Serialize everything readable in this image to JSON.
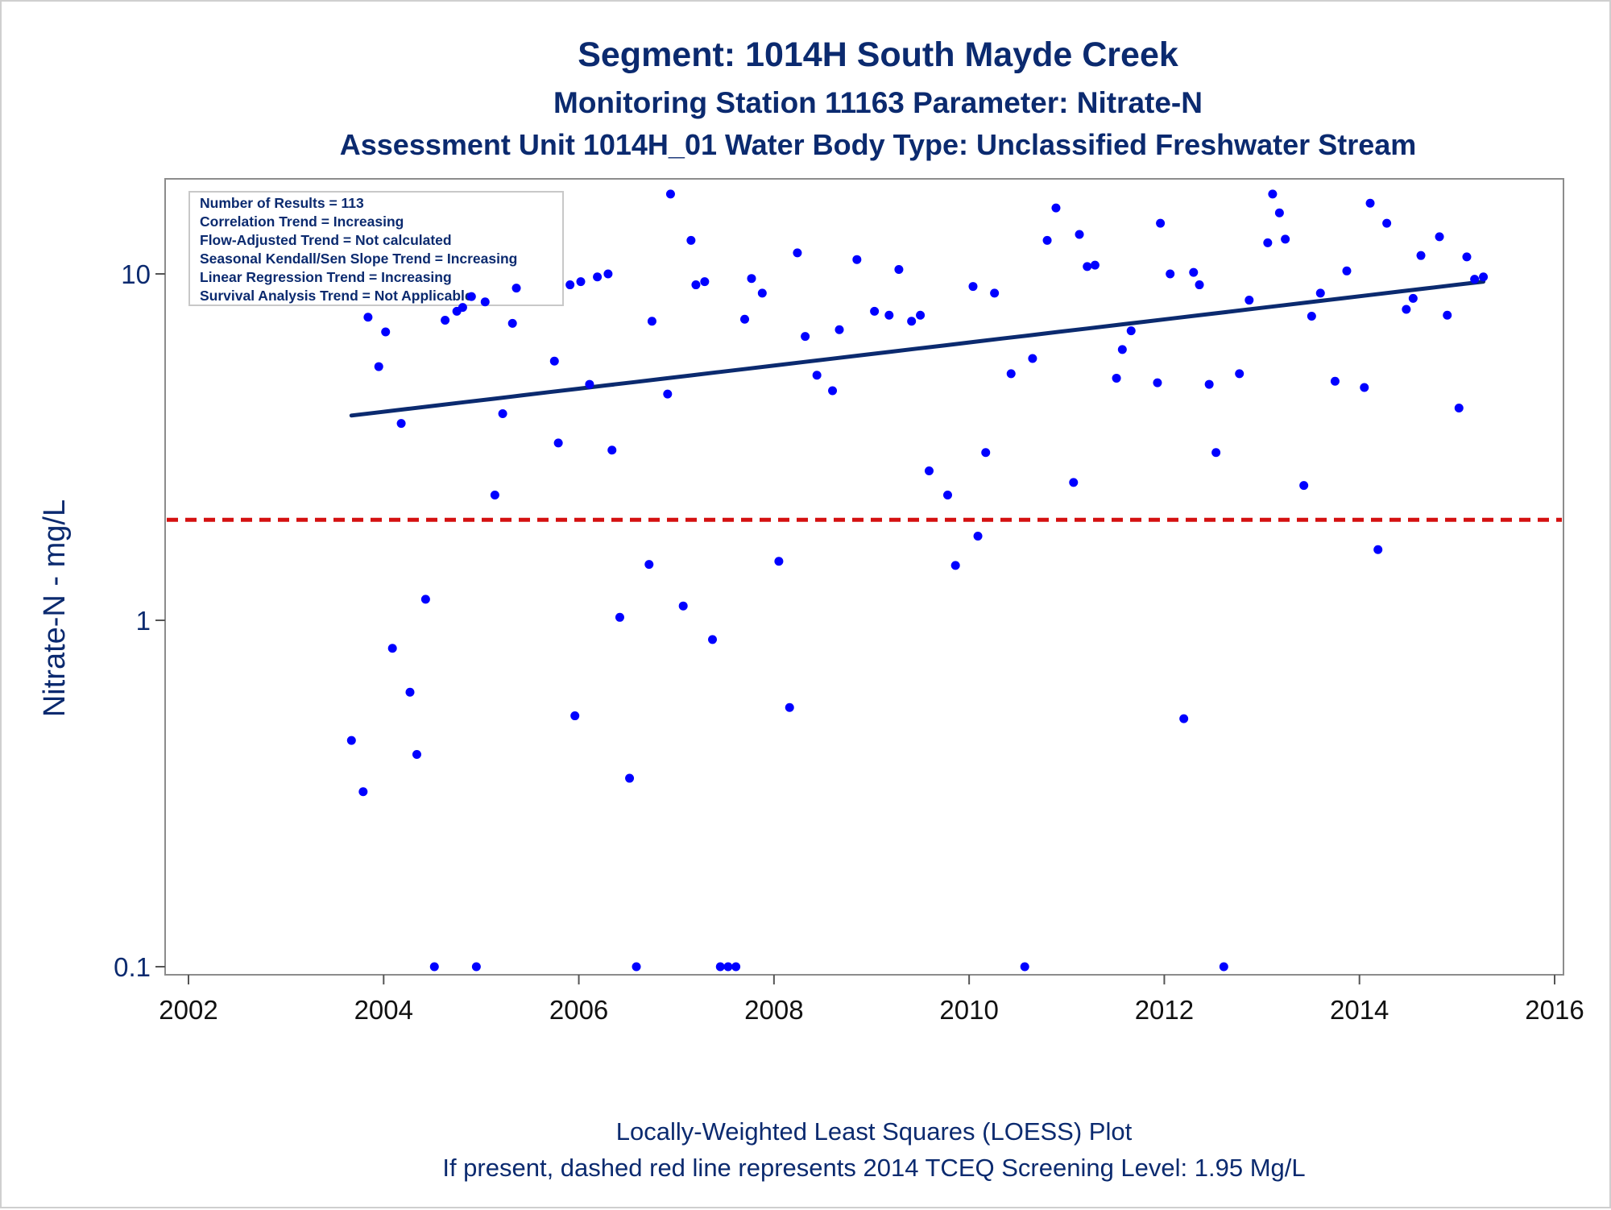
{
  "title": "Segment: 1014H  South Mayde Creek",
  "subtitle": "Monitoring Station 11163 Parameter: Nitrate-N",
  "subtitle2": "Assessment Unit 1014H_01   Water Body Type: Unclassified Freshwater Stream",
  "footnote1": "Locally-Weighted Least Squares (LOESS) Plot",
  "footnote2": "If present, dashed red line represents 2014 TCEQ Screening Level: 1.95 Mg/L",
  "stats_box": [
    "Number of Results = 113",
    "Correlation Trend = Increasing",
    "Flow-Adjusted Trend = Not calculated",
    "Seasonal Kendall/Sen Slope Trend = Increasing",
    "Linear Regression Trend = Increasing",
    "Survival Analysis Trend = Not Applicable"
  ],
  "chart_data": {
    "type": "scatter",
    "title": "Segment: 1014H  South Mayde Creek",
    "xlabel": "",
    "ylabel": "Nitrate-N - mg/L",
    "xlim": [
      2002,
      2016
    ],
    "ylim": [
      0.1,
      17
    ],
    "yscale": "log",
    "grid": false,
    "xticks": [
      "2002",
      "2004",
      "2006",
      "2008",
      "2010",
      "2012",
      "2014",
      "2016"
    ],
    "xtick_values": [
      2002,
      2004,
      2006,
      2008,
      2010,
      2012,
      2014,
      2016
    ],
    "yticks": [
      "0.1",
      "1",
      "10"
    ],
    "ytick_values": [
      0.1,
      1,
      10
    ],
    "colors": {
      "points": "#0000ff",
      "trend": "#0b2a6f",
      "screening": "#d41111"
    },
    "screening_level": {
      "value": 1.95,
      "style": "dashed",
      "color": "#d41111"
    },
    "trend_line": {
      "x": [
        2003.67,
        2015.27
      ],
      "y": [
        3.9,
        9.5
      ]
    },
    "series": [
      {
        "name": "",
        "points": [
          [
            2003.67,
            0.45
          ],
          [
            2003.79,
            0.32
          ],
          [
            2003.84,
            7.5
          ],
          [
            2003.95,
            5.4
          ],
          [
            2004.02,
            6.8
          ],
          [
            2004.09,
            0.83
          ],
          [
            2004.18,
            3.7
          ],
          [
            2004.27,
            0.62
          ],
          [
            2004.34,
            0.41
          ],
          [
            2004.43,
            1.15
          ],
          [
            2004.52,
            0.1
          ],
          [
            2004.63,
            7.35
          ],
          [
            2004.75,
            7.8
          ],
          [
            2004.81,
            8.0
          ],
          [
            2004.9,
            8.6
          ],
          [
            2004.95,
            0.1
          ],
          [
            2005.04,
            8.3
          ],
          [
            2005.14,
            2.3
          ],
          [
            2005.22,
            3.95
          ],
          [
            2005.32,
            7.2
          ],
          [
            2005.36,
            9.1
          ],
          [
            2005.75,
            5.6
          ],
          [
            2005.79,
            3.25
          ],
          [
            2005.91,
            9.3
          ],
          [
            2005.96,
            0.53
          ],
          [
            2006.02,
            9.5
          ],
          [
            2006.11,
            4.8
          ],
          [
            2006.19,
            9.8
          ],
          [
            2006.3,
            10.0
          ],
          [
            2006.34,
            3.1
          ],
          [
            2006.42,
            1.02
          ],
          [
            2006.52,
            0.35
          ],
          [
            2006.59,
            0.1
          ],
          [
            2006.72,
            1.45
          ],
          [
            2006.75,
            7.3
          ],
          [
            2006.91,
            4.5
          ],
          [
            2006.94,
            17.0
          ],
          [
            2007.07,
            1.1
          ],
          [
            2007.15,
            12.5
          ],
          [
            2007.2,
            9.3
          ],
          [
            2007.29,
            9.5
          ],
          [
            2007.37,
            0.88
          ],
          [
            2007.45,
            0.1
          ],
          [
            2007.53,
            0.1
          ],
          [
            2007.61,
            0.1
          ],
          [
            2007.7,
            7.4
          ],
          [
            2007.77,
            9.7
          ],
          [
            2007.88,
            8.8
          ],
          [
            2008.05,
            1.48
          ],
          [
            2008.16,
            0.56
          ],
          [
            2008.24,
            11.5
          ],
          [
            2008.32,
            6.6
          ],
          [
            2008.44,
            5.1
          ],
          [
            2008.6,
            4.6
          ],
          [
            2008.67,
            6.9
          ],
          [
            2008.85,
            11.0
          ],
          [
            2009.03,
            7.8
          ],
          [
            2009.18,
            7.6
          ],
          [
            2009.28,
            10.3
          ],
          [
            2009.41,
            7.3
          ],
          [
            2009.5,
            7.6
          ],
          [
            2009.59,
            2.7
          ],
          [
            2009.78,
            2.3
          ],
          [
            2009.86,
            1.44
          ],
          [
            2010.04,
            9.2
          ],
          [
            2010.09,
            1.75
          ],
          [
            2010.17,
            3.05
          ],
          [
            2010.26,
            8.8
          ],
          [
            2010.43,
            5.15
          ],
          [
            2010.57,
            0.1
          ],
          [
            2010.65,
            5.7
          ],
          [
            2010.8,
            12.5
          ],
          [
            2010.89,
            15.5
          ],
          [
            2011.07,
            2.5
          ],
          [
            2011.13,
            13.0
          ],
          [
            2011.21,
            10.5
          ],
          [
            2011.29,
            10.6
          ],
          [
            2011.51,
            5.0
          ],
          [
            2011.57,
            6.05
          ],
          [
            2011.66,
            6.85
          ],
          [
            2011.93,
            4.85
          ],
          [
            2011.96,
            14.0
          ],
          [
            2012.06,
            10.0
          ],
          [
            2012.2,
            0.52
          ],
          [
            2012.3,
            10.1
          ],
          [
            2012.36,
            9.3
          ],
          [
            2012.46,
            4.8
          ],
          [
            2012.53,
            3.05
          ],
          [
            2012.61,
            0.1
          ],
          [
            2012.77,
            5.15
          ],
          [
            2012.87,
            8.4
          ],
          [
            2013.06,
            12.3
          ],
          [
            2013.11,
            17.0
          ],
          [
            2013.18,
            15.0
          ],
          [
            2013.24,
            12.6
          ],
          [
            2013.43,
            2.45
          ],
          [
            2013.51,
            7.55
          ],
          [
            2013.6,
            8.8
          ],
          [
            2013.75,
            4.9
          ],
          [
            2013.87,
            10.2
          ],
          [
            2014.05,
            4.7
          ],
          [
            2014.11,
            16.0
          ],
          [
            2014.19,
            1.6
          ],
          [
            2014.28,
            14.0
          ],
          [
            2014.48,
            7.9
          ],
          [
            2014.55,
            8.5
          ],
          [
            2014.63,
            11.3
          ],
          [
            2014.82,
            12.8
          ],
          [
            2014.9,
            7.6
          ],
          [
            2015.02,
            4.1
          ],
          [
            2015.1,
            11.2
          ],
          [
            2015.18,
            9.65
          ],
          [
            2015.27,
            9.8
          ]
        ]
      }
    ]
  }
}
